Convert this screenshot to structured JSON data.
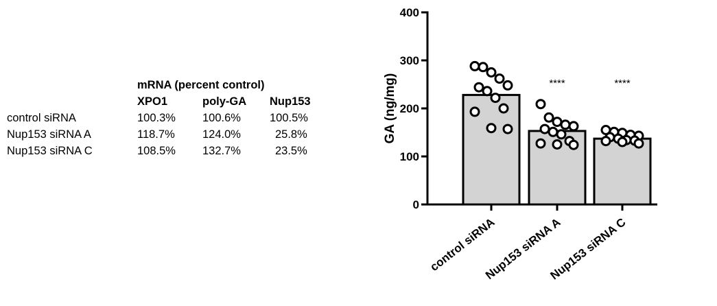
{
  "table": {
    "title": "mRNA (percent control)",
    "headers": [
      "XPO1",
      "poly-GA",
      "Nup153"
    ],
    "rows": [
      {
        "label": "control siRNA",
        "values": [
          "100.3%",
          "100.6%",
          "100.5%"
        ]
      },
      {
        "label": "Nup153 siRNA A",
        "values": [
          "118.7%",
          "124.0%",
          "25.8%"
        ]
      },
      {
        "label": "Nup153 siRNA C",
        "values": [
          "108.5%",
          "132.7%",
          "23.5%"
        ]
      }
    ]
  },
  "chart_data": {
    "type": "bar",
    "categories": [
      "control siRNA",
      "Nup153 siRNA A",
      "Nup153 siRNA C"
    ],
    "values": [
      228,
      153,
      137
    ],
    "significance": [
      "",
      "****",
      "****"
    ],
    "points": [
      [
        288,
        286,
        275,
        262,
        248,
        244,
        236,
        222,
        200,
        193,
        159,
        157
      ],
      [
        209,
        181,
        172,
        166,
        163,
        157,
        151,
        146,
        132,
        127,
        125,
        124
      ],
      [
        155,
        151,
        149,
        145,
        143,
        140,
        137,
        134,
        133,
        132,
        130,
        127
      ]
    ],
    "ylabel": "GA (ng/mg)",
    "xlabel": "",
    "title": "",
    "ylim": [
      0,
      400
    ],
    "yticks": [
      0,
      100,
      200,
      300,
      400
    ],
    "bar_color": "#d3d3d3",
    "edge_color": "#000000",
    "point_fill": "#ffffff",
    "grid": false
  }
}
